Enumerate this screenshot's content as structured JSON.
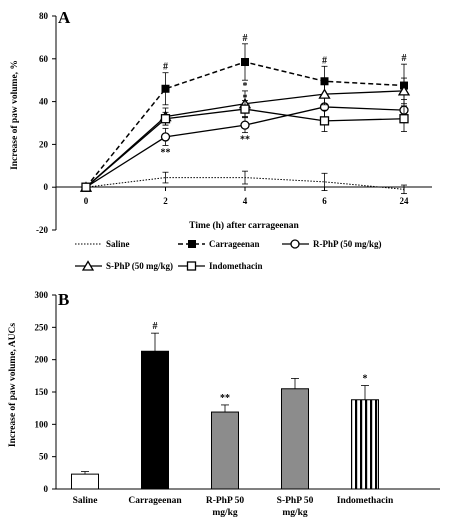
{
  "chart_data": [
    {
      "type": "line",
      "panel_label": "A",
      "xlabel": "Time (h) after carrageenan",
      "ylabel": "Increase of paw volume, %",
      "x": [
        "0",
        "2",
        "4",
        "6",
        "24"
      ],
      "ylim": [
        -20,
        80
      ],
      "yticks": [
        "-20",
        "0",
        "20",
        "40",
        "60",
        "80"
      ],
      "grid": false,
      "legend_position": "bottom",
      "series": [
        {
          "name": "Saline",
          "style": "dotted",
          "marker": "none",
          "values": [
            0,
            4.5,
            4.5,
            2.5,
            -1
          ],
          "errors": [
            0,
            2.5,
            3,
            4,
            2
          ],
          "sig": [
            "",
            "",
            "",
            "",
            ""
          ]
        },
        {
          "name": "Carrageenan",
          "style": "dashed",
          "marker": "filled-square",
          "values": [
            0,
            46,
            58.5,
            49.5,
            47.5
          ],
          "errors": [
            0,
            7.5,
            8.5,
            7,
            10
          ],
          "sig": [
            "",
            "#",
            "#",
            "#",
            "#"
          ]
        },
        {
          "name": "R-PhP (50 mg/kg)",
          "style": "solid",
          "marker": "open-circle",
          "values": [
            0,
            23.5,
            29,
            37.5,
            36
          ],
          "errors": [
            0,
            4,
            3.5,
            5,
            5
          ],
          "sig": [
            "",
            "**",
            "**",
            "*",
            ""
          ]
        },
        {
          "name": "S-PhP (50 mg/kg)",
          "style": "solid",
          "marker": "open-triangle",
          "values": [
            0,
            33,
            39,
            43.5,
            45
          ],
          "errors": [
            0,
            4,
            6,
            5,
            6
          ],
          "sig": [
            "",
            "",
            "*",
            "",
            ""
          ]
        },
        {
          "name": "Indomethacin",
          "style": "solid",
          "marker": "open-square",
          "values": [
            0,
            32,
            36.5,
            31,
            32
          ],
          "errors": [
            0,
            3,
            4,
            5,
            6
          ],
          "sig": [
            "",
            "",
            "*",
            "",
            ""
          ]
        }
      ]
    },
    {
      "type": "bar",
      "panel_label": "B",
      "ylabel": "Increase of paw volume, AUCs",
      "categories": [
        "Saline",
        "Carrageenan",
        "R-PhP 50 mg/kg",
        "S-PhP 50 mg/kg",
        "Indomethacin"
      ],
      "values": [
        23,
        213,
        119,
        155,
        138
      ],
      "errors": [
        4,
        28,
        11,
        16,
        22
      ],
      "sig": [
        "",
        "#",
        "**",
        "",
        "*"
      ],
      "fills": [
        "white",
        "black",
        "gray",
        "gray",
        "vertical-stripes"
      ],
      "colors": {
        "black": "#000000",
        "gray": "#8c8c8c",
        "white": "#ffffff"
      },
      "ylim": [
        0,
        300
      ],
      "yticks": [
        "0",
        "50",
        "100",
        "150",
        "200",
        "250",
        "300"
      ],
      "grid": false
    }
  ]
}
